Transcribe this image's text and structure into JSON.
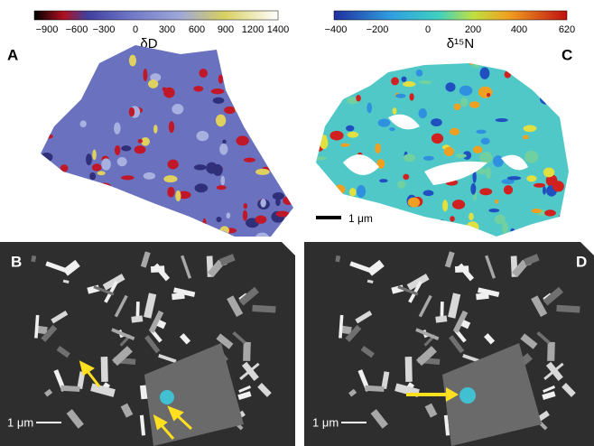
{
  "panels": {
    "a": {
      "label": "A",
      "scale_title": "δD",
      "scale_ticks": [
        "−900",
        "−600",
        "−300",
        "0",
        "300",
        "600",
        "900",
        "1200",
        "1400"
      ]
    },
    "c": {
      "label": "C",
      "scale_title": "δ¹⁵N",
      "scale_ticks": [
        "−400",
        "−200",
        "0",
        "200",
        "400",
        "620"
      ],
      "scale_bar": "1 μm"
    },
    "b": {
      "label": "B",
      "scale_bar": "1 μm"
    },
    "d": {
      "label": "D",
      "scale_bar": "1 μm"
    }
  }
}
